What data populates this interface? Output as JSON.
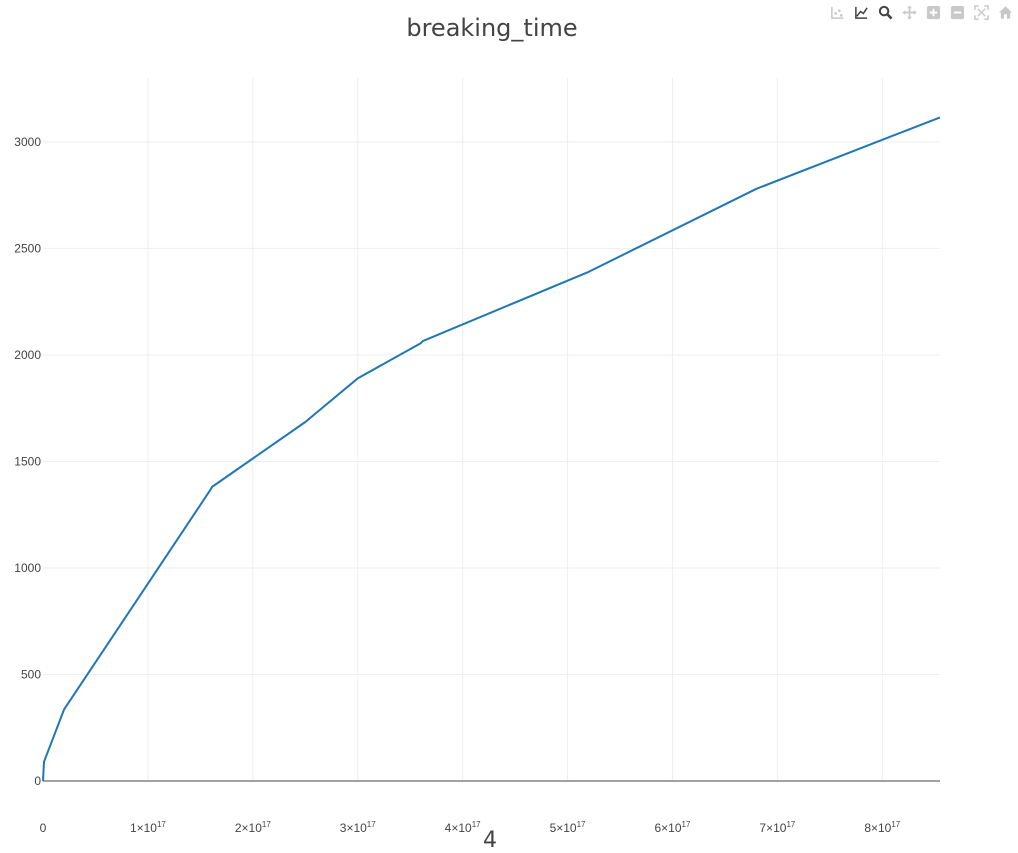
{
  "modebar": {
    "buttons": [
      {
        "name": "compare-data-icon",
        "title": "Compare data on hover"
      },
      {
        "name": "closest-data-icon",
        "title": "Show closest data on hover"
      },
      {
        "name": "zoom-icon",
        "title": "Zoom"
      },
      {
        "name": "pan-icon",
        "title": "Pan"
      },
      {
        "name": "zoom-in-icon",
        "title": "Zoom in"
      },
      {
        "name": "zoom-out-icon",
        "title": "Zoom out"
      },
      {
        "name": "autoscale-icon",
        "title": "Autoscale"
      },
      {
        "name": "reset-axes-icon",
        "title": "Reset axes"
      }
    ],
    "active_color": "#444444",
    "inactive_color": "#c8c8c8"
  },
  "chart_data": {
    "type": "line",
    "title": "breaking_time",
    "xlabel": "4",
    "ylabel": "",
    "xlim": [
      0,
      8.55e+17
    ],
    "ylim": [
      0,
      3300
    ],
    "grid": true,
    "x_ticks": [
      {
        "value": 0,
        "mantissa": "0",
        "exponent": ""
      },
      {
        "value": 1e+17,
        "mantissa": "1×10",
        "exponent": "17"
      },
      {
        "value": 2e+17,
        "mantissa": "2×10",
        "exponent": "17"
      },
      {
        "value": 3e+17,
        "mantissa": "3×10",
        "exponent": "17"
      },
      {
        "value": 4e+17,
        "mantissa": "4×10",
        "exponent": "17"
      },
      {
        "value": 5e+17,
        "mantissa": "5×10",
        "exponent": "17"
      },
      {
        "value": 6e+17,
        "mantissa": "6×10",
        "exponent": "17"
      },
      {
        "value": 7e+17,
        "mantissa": "7×10",
        "exponent": "17"
      },
      {
        "value": 8e+17,
        "mantissa": "8×10",
        "exponent": "17"
      }
    ],
    "y_ticks": [
      0,
      500,
      1000,
      1500,
      2000,
      2500,
      3000
    ],
    "line_color": "#1f77b4",
    "series": [
      {
        "x": [
          0,
          1000000000000000.0,
          2e+16,
          1.6e+17,
          1.61e+17,
          2.5e+17,
          3e+17,
          3.6e+17,
          3.62e+17,
          5.2e+17,
          6.8e+17,
          8.55e+17
        ],
        "y": [
          0,
          90,
          335,
          1370,
          1380,
          1685,
          1890,
          2055,
          2065,
          2390,
          2780,
          3115
        ]
      }
    ]
  }
}
